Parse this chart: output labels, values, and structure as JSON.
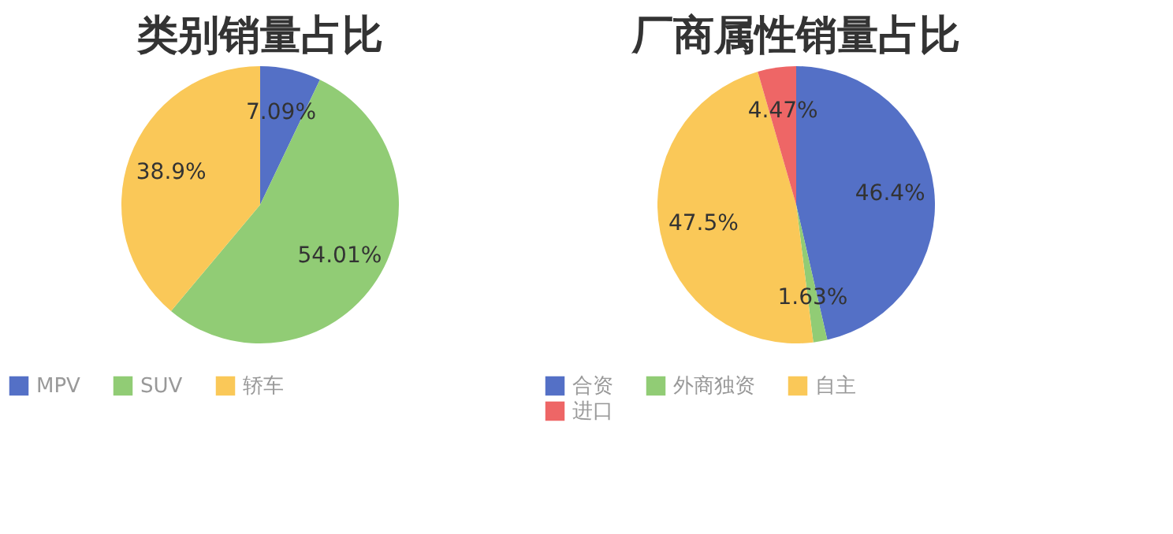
{
  "chart_data": [
    {
      "type": "pie",
      "title": "类别销量占比",
      "categories": [
        "MPV",
        "SUV",
        "轿车"
      ],
      "values": [
        7.09,
        54.01,
        38.9
      ],
      "colors": [
        "#5470c6",
        "#91cc75",
        "#fac858"
      ],
      "value_labels": [
        "7.09%",
        "54.01%",
        "38.9%"
      ],
      "legend": "bottom"
    },
    {
      "type": "pie",
      "title": "厂商属性销量占比",
      "categories": [
        "合资",
        "外商独资",
        "自主",
        "进口"
      ],
      "values": [
        46.4,
        1.63,
        47.5,
        4.47
      ],
      "colors": [
        "#5470c6",
        "#91cc75",
        "#fac858",
        "#ee6666"
      ],
      "value_labels": [
        "46.4%",
        "1.63%",
        "47.5%",
        "4.47%"
      ],
      "legend": "bottom"
    }
  ]
}
